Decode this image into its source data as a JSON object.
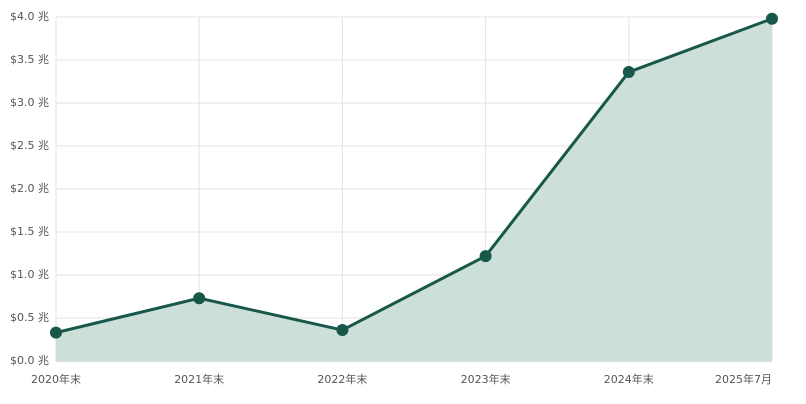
{
  "chart_data": {
    "type": "area",
    "categories": [
      "2020年末",
      "2021年末",
      "2022年末",
      "2023年末",
      "2024年末",
      "2025年7月"
    ],
    "values": [
      0.33,
      0.73,
      0.36,
      1.22,
      3.36,
      3.98
    ],
    "color": "#17584a",
    "fill_color": "#cddfd9",
    "ylim": [
      0,
      4.0
    ],
    "yticks": [
      {
        "value": 0,
        "label": "$0.0 兆"
      },
      {
        "value": 0.5,
        "label": "$0.5 兆"
      },
      {
        "value": 1.0,
        "label": "$1.0 兆"
      },
      {
        "value": 1.5,
        "label": "$1.5 兆"
      },
      {
        "value": 2.0,
        "label": "$2.0 兆"
      },
      {
        "value": 2.5,
        "label": "$2.5 兆"
      },
      {
        "value": 3.0,
        "label": "$3.0 兆"
      },
      {
        "value": 3.5,
        "label": "$3.5 兆"
      },
      {
        "value": 4.0,
        "label": "$4.0 兆"
      }
    ],
    "grid": true
  }
}
